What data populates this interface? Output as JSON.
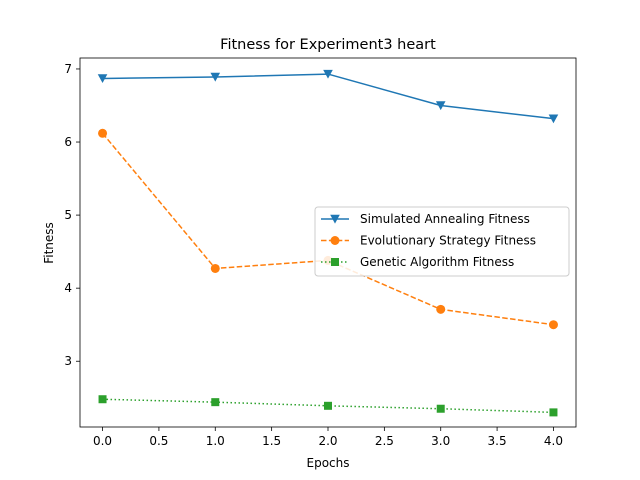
{
  "chart_data": {
    "type": "line",
    "title": "Fitness for Experiment3 heart",
    "xlabel": "Epochs",
    "ylabel": "Fitness",
    "xlim": [
      -0.2,
      4.2
    ],
    "ylim": [
      2.1,
      7.15
    ],
    "xticks": [
      0.0,
      0.5,
      1.0,
      1.5,
      2.0,
      2.5,
      3.0,
      3.5,
      4.0
    ],
    "xtick_labels": [
      "0.0",
      "0.5",
      "1.0",
      "1.5",
      "2.0",
      "2.5",
      "3.0",
      "3.5",
      "4.0"
    ],
    "yticks": [
      3,
      4,
      5,
      6,
      7
    ],
    "ytick_labels": [
      "3",
      "4",
      "5",
      "6",
      "7"
    ],
    "grid": false,
    "legend_position": "center-right",
    "x": [
      0,
      1,
      2,
      3,
      4
    ],
    "series": [
      {
        "name": "Simulated Annealing Fitness",
        "values": [
          6.87,
          6.89,
          6.93,
          6.5,
          6.32
        ],
        "color": "#1f77b4",
        "line_style": "solid",
        "marker": "triangle-down"
      },
      {
        "name": "Evolutionary Strategy Fitness",
        "values": [
          6.12,
          4.27,
          4.38,
          3.71,
          3.5
        ],
        "color": "#ff7f0e",
        "line_style": "dashed",
        "marker": "circle"
      },
      {
        "name": "Genetic Algorithm Fitness",
        "values": [
          2.48,
          2.44,
          2.39,
          2.35,
          2.3
        ],
        "color": "#2ca02c",
        "line_style": "dotted",
        "marker": "square"
      }
    ]
  }
}
